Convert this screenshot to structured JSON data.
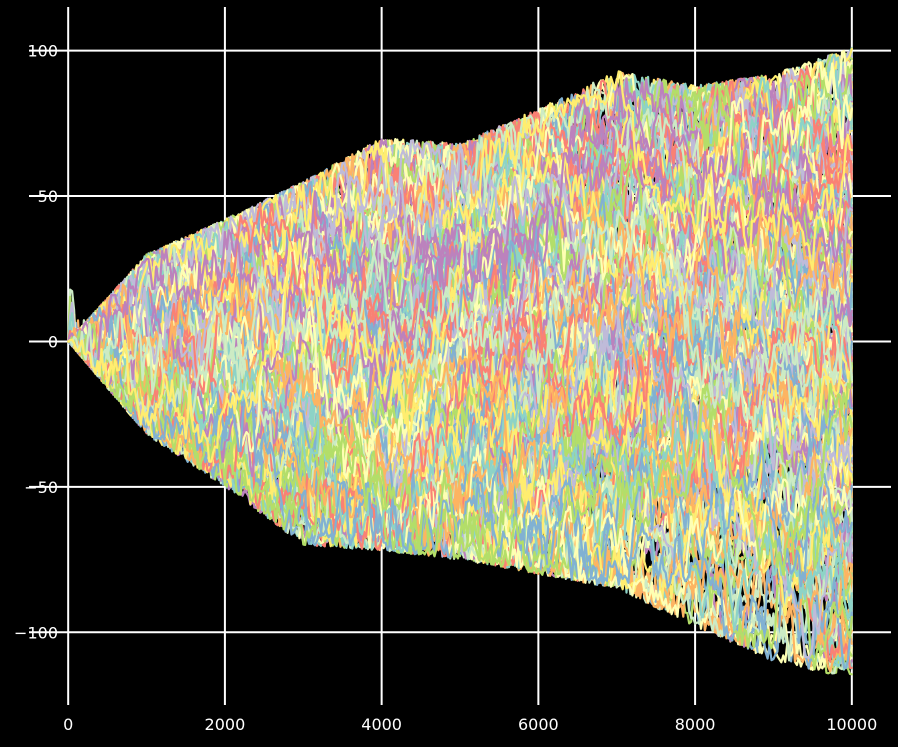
{
  "chart_data": {
    "type": "line",
    "title": "",
    "xlabel": "",
    "ylabel": "",
    "xlim": [
      -500,
      10500
    ],
    "ylim": [
      -125,
      115
    ],
    "grid": true,
    "legend": "none",
    "background": "#000000",
    "axis_color": "#ffffff",
    "x_ticks": [
      0,
      2000,
      4000,
      6000,
      8000,
      10000
    ],
    "x_tick_labels": [
      "0",
      "2000",
      "4000",
      "6000",
      "8000",
      "10000"
    ],
    "y_ticks": [
      100,
      50,
      0,
      -50,
      -100
    ],
    "y_tick_labels": [
      "100",
      "50",
      "0",
      "−50",
      "−100"
    ],
    "palette": [
      "#8dd3c7",
      "#feffb3",
      "#bfbbd9",
      "#fa8174",
      "#81b1d2",
      "#fdb462",
      "#b3de69",
      "#bc82bd",
      "#ccebc4",
      "#ffed6f"
    ],
    "series_count": 250,
    "steps_per_series": 10000,
    "step": "±1 random walk starting at 0",
    "x_domain": [
      0,
      10000
    ],
    "y_observed_range": [
      -116,
      101
    ],
    "envelope": {
      "x": [
        0,
        1000,
        2000,
        3000,
        4000,
        5000,
        6000,
        7000,
        8000,
        9000,
        10000
      ],
      "upper": [
        0,
        30,
        42,
        55,
        70,
        68,
        80,
        93,
        88,
        92,
        101
      ],
      "lower": [
        0,
        -32,
        -50,
        -70,
        -72,
        -75,
        -80,
        -85,
        -98,
        -110,
        -116
      ]
    }
  }
}
